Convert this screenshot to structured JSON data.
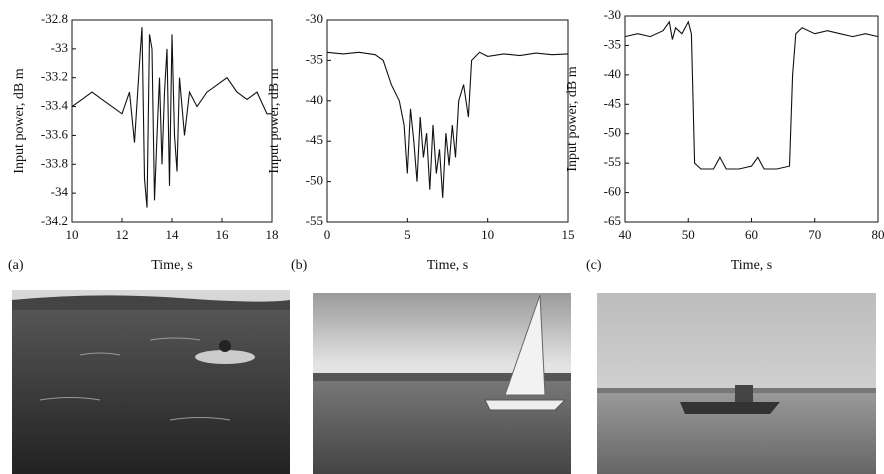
{
  "chart_data": [
    {
      "type": "line",
      "panel_label": "(a)",
      "x_label": "Time, s",
      "y_label": "Input power, dB m",
      "color": "#111111",
      "xlim": [
        10,
        18
      ],
      "xticks": [
        10,
        12,
        14,
        16,
        18
      ],
      "ylim": [
        -34.2,
        -32.8
      ],
      "yticks": [
        -34.2,
        -34,
        -33.8,
        -33.6,
        -33.4,
        -33.2,
        -33,
        -32.8
      ],
      "x": [
        10,
        10.4,
        10.8,
        11.2,
        11.6,
        12,
        12.3,
        12.5,
        12.7,
        12.8,
        12.9,
        13,
        13.1,
        13.2,
        13.3,
        13.4,
        13.5,
        13.6,
        13.7,
        13.8,
        13.9,
        14,
        14.1,
        14.2,
        14.3,
        14.5,
        14.7,
        15,
        15.4,
        15.8,
        16.2,
        16.6,
        17,
        17.4,
        17.8,
        18
      ],
      "values": [
        -33.4,
        -33.35,
        -33.3,
        -33.35,
        -33.4,
        -33.45,
        -33.3,
        -33.65,
        -33.1,
        -32.85,
        -33.9,
        -34.1,
        -32.9,
        -33.0,
        -34.05,
        -33.6,
        -33.2,
        -33.8,
        -33.3,
        -33.0,
        -33.95,
        -32.9,
        -33.6,
        -33.85,
        -33.2,
        -33.6,
        -33.3,
        -33.4,
        -33.3,
        -33.25,
        -33.2,
        -33.3,
        -33.35,
        -33.3,
        -33.45,
        -33.45
      ]
    },
    {
      "type": "line",
      "panel_label": "(b)",
      "x_label": "Time, s",
      "y_label": "Input power, dB m",
      "color": "#111111",
      "xlim": [
        0,
        15
      ],
      "xticks": [
        0,
        5,
        10,
        15
      ],
      "ylim": [
        -55,
        -30
      ],
      "yticks": [
        -55,
        -50,
        -45,
        -40,
        -35,
        -30
      ],
      "x": [
        0,
        1,
        2,
        3,
        3.5,
        4,
        4.5,
        4.8,
        5,
        5.2,
        5.4,
        5.6,
        5.8,
        6,
        6.2,
        6.4,
        6.6,
        6.8,
        7,
        7.2,
        7.4,
        7.6,
        7.8,
        8,
        8.2,
        8.5,
        8.8,
        9,
        9.5,
        10,
        11,
        12,
        13,
        14,
        15
      ],
      "values": [
        -34,
        -34.2,
        -34,
        -34.3,
        -35,
        -38,
        -40,
        -43,
        -49,
        -41,
        -45,
        -50,
        -42,
        -47,
        -44,
        -51,
        -43,
        -49,
        -46,
        -52,
        -44,
        -48,
        -43,
        -47,
        -40,
        -38,
        -42,
        -35,
        -34,
        -34.5,
        -34.2,
        -34.4,
        -34.1,
        -34.3,
        -34.2
      ]
    },
    {
      "type": "line",
      "panel_label": "(c)",
      "x_label": "Time, s",
      "y_label": "Input power, dB m",
      "color": "#111111",
      "xlim": [
        40,
        80
      ],
      "xticks": [
        40,
        50,
        60,
        70,
        80
      ],
      "ylim": [
        -65,
        -30
      ],
      "yticks": [
        -65,
        -60,
        -55,
        -50,
        -45,
        -40,
        -35,
        -30
      ],
      "x": [
        40,
        42,
        44,
        46,
        47,
        47.5,
        48,
        49,
        50,
        50.5,
        51,
        52,
        54,
        55,
        56,
        58,
        60,
        61,
        62,
        64,
        66,
        66.5,
        67,
        68,
        70,
        72,
        74,
        76,
        78,
        80
      ],
      "values": [
        -33.5,
        -33,
        -33.5,
        -32.5,
        -31,
        -34,
        -32,
        -33,
        -31,
        -33,
        -55,
        -56,
        -56,
        -54,
        -56,
        -56,
        -55.5,
        -54,
        -56,
        -56,
        -55.5,
        -40,
        -33,
        -32,
        -33,
        -32.5,
        -33,
        -33.5,
        -33,
        -33.5
      ]
    }
  ]
}
